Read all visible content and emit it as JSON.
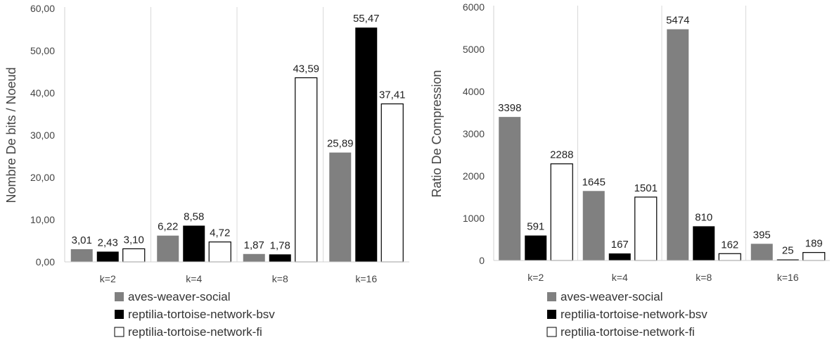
{
  "chart_data": [
    {
      "type": "bar",
      "categories": [
        "k=2",
        "k=4",
        "k=8",
        "k=16"
      ],
      "series": [
        {
          "name": "aves-weaver-social",
          "values": [
            3.01,
            6.22,
            1.87,
            25.89
          ],
          "labels": [
            "3,01",
            "6,22",
            "1,87",
            "25,89"
          ],
          "color": "#808080"
        },
        {
          "name": "reptilia-tortoise-network-bsv",
          "values": [
            2.43,
            8.58,
            1.78,
            55.47
          ],
          "labels": [
            "2,43",
            "8,58",
            "1,78",
            "55,47"
          ],
          "color": "#000000"
        },
        {
          "name": "reptilia-tortoise-network-fi",
          "values": [
            3.1,
            4.72,
            43.59,
            37.41
          ],
          "labels": [
            "3,10",
            "4,72",
            "43,59",
            "37,41"
          ],
          "color": "#ffffff"
        }
      ],
      "ylabel": "Nombre De bits / Noeud",
      "ylim": [
        0,
        60
      ],
      "yticks": [
        "0,00",
        "10,00",
        "20,00",
        "30,00",
        "40,00",
        "50,00",
        "60,00"
      ],
      "grid": "vertical category separators",
      "legend": "bottom"
    },
    {
      "type": "bar",
      "categories": [
        "k=2",
        "k=4",
        "k=8",
        "k=16"
      ],
      "series": [
        {
          "name": "aves-weaver-social",
          "values": [
            3398,
            1645,
            5474,
            395
          ],
          "labels": [
            "3398",
            "1645",
            "5474",
            "395"
          ],
          "color": "#808080"
        },
        {
          "name": "reptilia-tortoise-network-bsv",
          "values": [
            591,
            167,
            810,
            25
          ],
          "labels": [
            "591",
            "167",
            "810",
            "25"
          ],
          "color": "#000000"
        },
        {
          "name": "reptilia-tortoise-network-fi",
          "values": [
            2288,
            1501,
            162,
            189
          ],
          "labels": [
            "2288",
            "1501",
            "162",
            "189"
          ],
          "color": "#ffffff"
        }
      ],
      "ylabel": "Ratio De Compression",
      "ylim": [
        0,
        6000
      ],
      "yticks": [
        "0",
        "1000",
        "2000",
        "3000",
        "4000",
        "5000",
        "6000"
      ],
      "grid": "vertical category separators",
      "legend": "bottom"
    }
  ]
}
